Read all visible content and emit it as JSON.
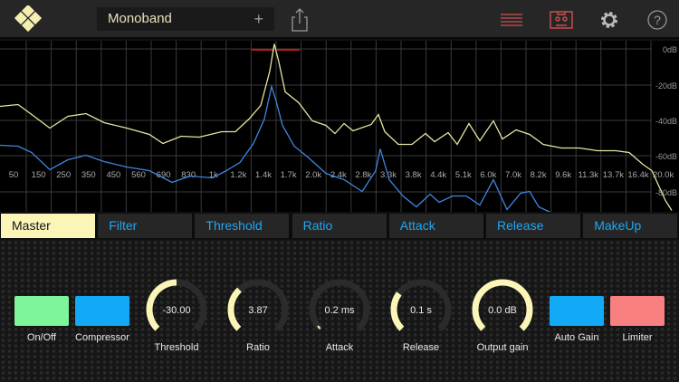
{
  "header": {
    "preset_name": "Monoband",
    "add_label": "+",
    "icons": [
      "logo-diamonds-icon",
      "share-icon",
      "menu-lines-icon",
      "cassette-icon",
      "gear-icon",
      "help-icon"
    ]
  },
  "analyzer": {
    "db_labels": [
      "0dB",
      "-20dB",
      "-40dB",
      "-60dB",
      "-80dB"
    ],
    "freq_labels": [
      "50",
      "150",
      "250",
      "350",
      "450",
      "560",
      "690",
      "830",
      "1k",
      "1.2k",
      "1.4k",
      "1.7k",
      "2.0k",
      "2.4k",
      "2.8k",
      "3.3k",
      "3.8k",
      "4.4k",
      "5.1k",
      "6.0k",
      "7.0k",
      "8.2k",
      "9.6k",
      "11.3k",
      "13.7k",
      "16.4k",
      "20.0k"
    ],
    "colors": {
      "input": "#e8e4a0",
      "output": "#3f86e0",
      "clip": "#c0181c"
    }
  },
  "tabs": [
    {
      "label": "Master"
    },
    {
      "label": "Filter"
    },
    {
      "label": "Threshold"
    },
    {
      "label": "Ratio"
    },
    {
      "label": "Attack"
    },
    {
      "label": "Release"
    },
    {
      "label": "MakeUp"
    }
  ],
  "controls": {
    "onoff": {
      "label": "On/Off",
      "color": "#7ef59a"
    },
    "compressor": {
      "label": "Compressor",
      "color": "#12a9f7"
    },
    "knobs": [
      {
        "label": "Threshold",
        "value": "-30.00",
        "fraction": 0.5
      },
      {
        "label": "Ratio",
        "value": "3.87",
        "fraction": 0.34
      },
      {
        "label": "Attack",
        "value": "0.2 ms",
        "fraction": 0.02
      },
      {
        "label": "Release",
        "value": "0.1 s",
        "fraction": 0.3
      },
      {
        "label": "Output gain",
        "value": "0.0 dB",
        "fraction": 1.0
      }
    ],
    "autogain": {
      "label": "Auto Gain",
      "color": "#12a9f7"
    },
    "limiter": {
      "label": "Limiter",
      "color": "#f98080"
    }
  }
}
